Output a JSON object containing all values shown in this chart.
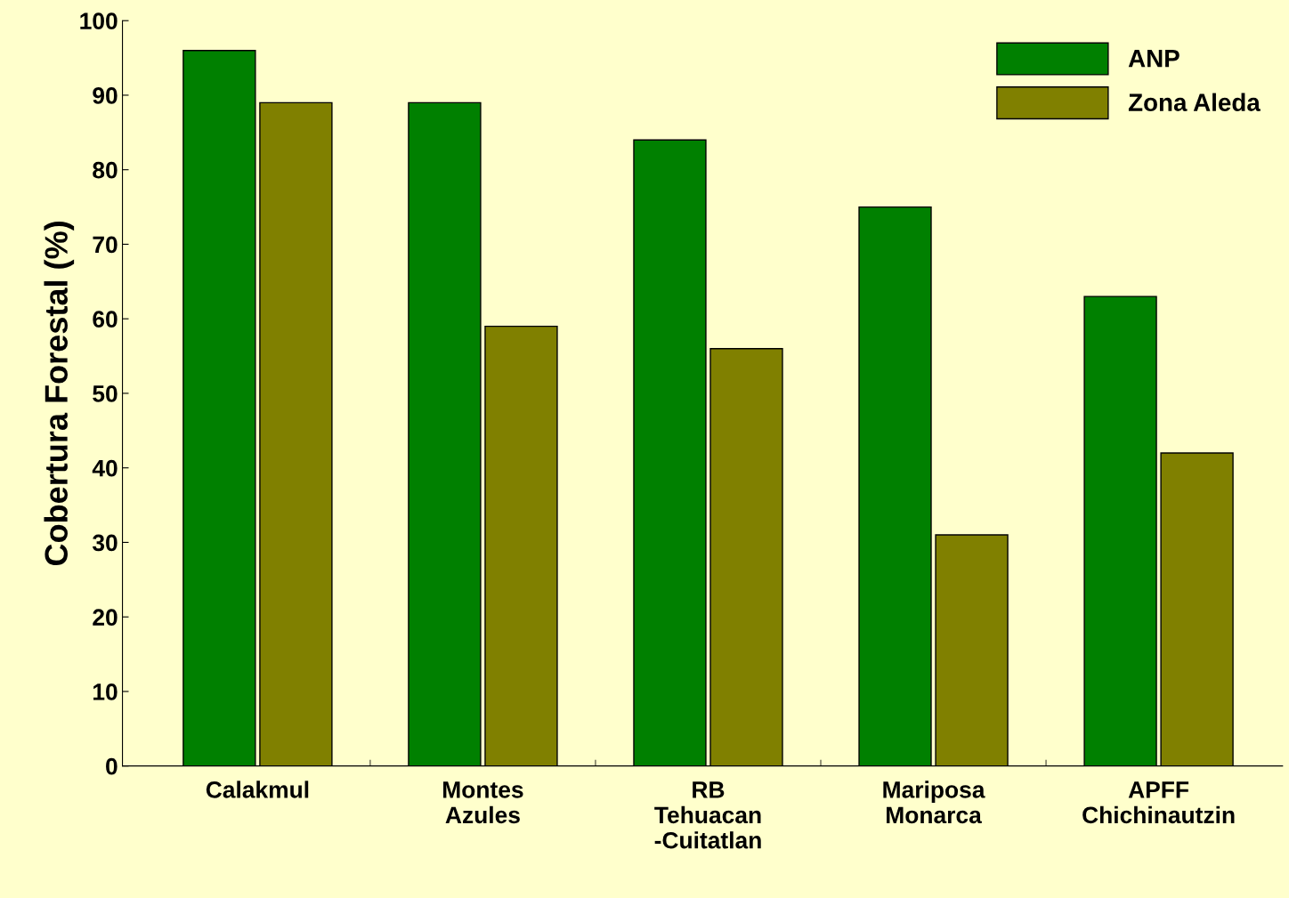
{
  "chart_data": {
    "type": "bar",
    "ylabel": "Cobertura Forestal (%)",
    "categories": [
      "Calakmul",
      "Montes\nAzules",
      "RB\nTehuacan\n-Cuitatlan",
      "Mariposa\nMonarca",
      "APFF\nChichinautzin"
    ],
    "series": [
      {
        "name": "ANP",
        "color": "#008000",
        "values": [
          96,
          89,
          84,
          75,
          63
        ]
      },
      {
        "name": "Zona Aleda",
        "color": "#808000",
        "values": [
          89,
          59,
          56,
          31,
          42
        ]
      }
    ],
    "ylim": [
      0,
      100
    ],
    "yticks": [
      0,
      10,
      20,
      30,
      40,
      50,
      60,
      70,
      80,
      90,
      100
    ],
    "grid": false,
    "legend": "top right"
  }
}
